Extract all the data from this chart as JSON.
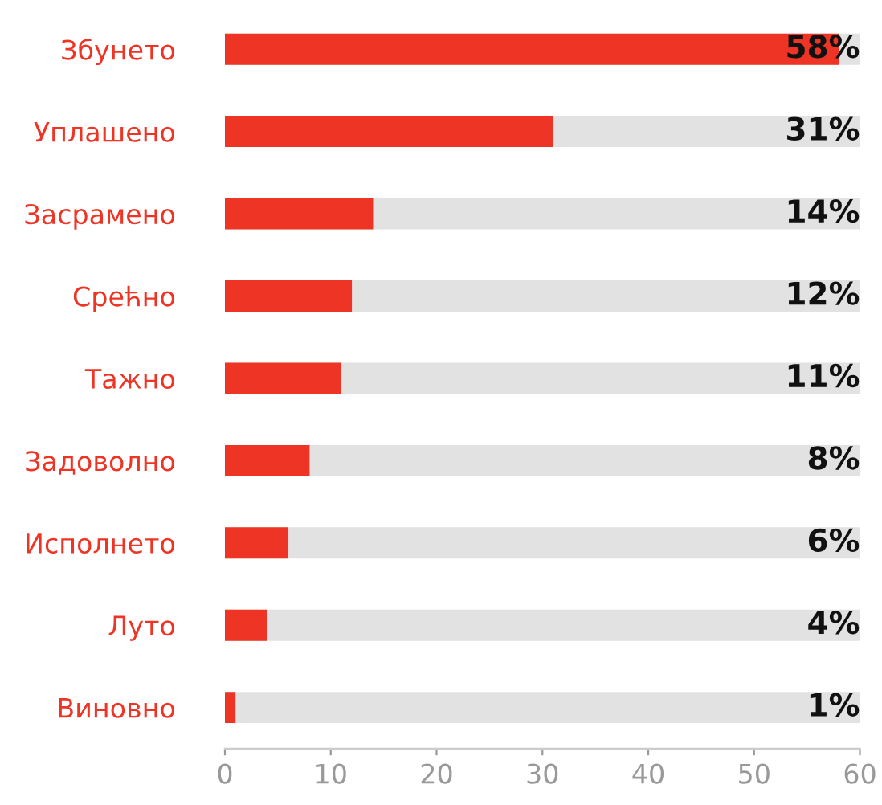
{
  "chart_data": {
    "type": "bar",
    "orientation": "horizontal",
    "categories": [
      "Збунето",
      "Уплашено",
      "Засрамено",
      "Срећно",
      "Тажно",
      "Задоволно",
      "Исполнето",
      "Луто",
      "Виновно"
    ],
    "values": [
      58,
      31,
      14,
      12,
      11,
      8,
      6,
      4,
      1
    ],
    "color": "#ee3424",
    "value_labels": [
      "58%",
      "31%",
      "14%",
      "12%",
      "11%",
      "8%",
      "6%",
      "4%",
      "1%"
    ],
    "xlim": [
      0,
      60
    ],
    "xticks": [
      0,
      10,
      20,
      30,
      40,
      50,
      60
    ],
    "grid": false,
    "legend": false
  }
}
